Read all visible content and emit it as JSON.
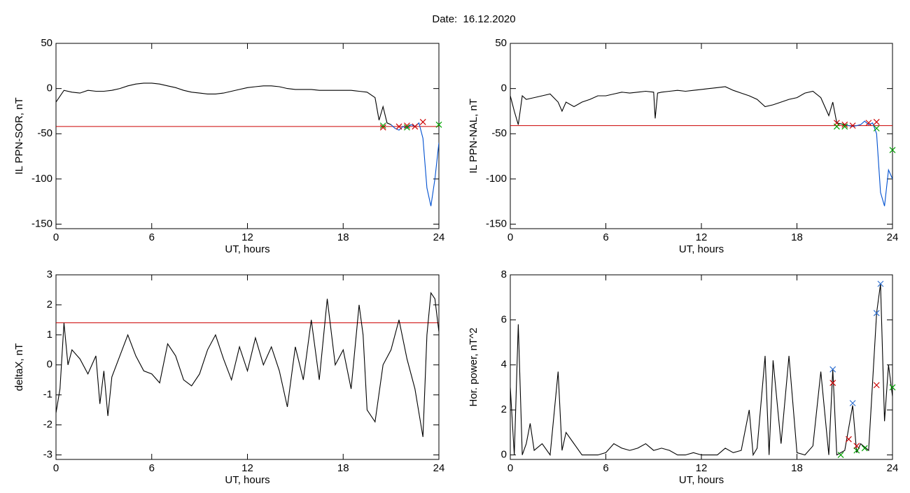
{
  "title": "Date:  16.12.2020",
  "chart_data": [
    {
      "type": "line",
      "xlabel": "UT, hours",
      "ylabel": "IL PPN-SOR, nT",
      "xlim": [
        0,
        24
      ],
      "xticks": [
        0,
        6,
        12,
        18,
        24
      ],
      "ylim": [
        -155,
        50
      ],
      "yticks": [
        -150,
        -100,
        -50,
        0,
        50
      ],
      "threshold": {
        "value": -42,
        "color": "#cc0000"
      },
      "series": [
        {
          "type": "line",
          "color": "#000000",
          "x": [
            0,
            0.5,
            1,
            1.5,
            2,
            2.5,
            3,
            3.5,
            4,
            4.5,
            5,
            5.5,
            6,
            6.5,
            7,
            7.5,
            8,
            8.5,
            9,
            9.5,
            10,
            10.5,
            11,
            11.5,
            12,
            12.5,
            13,
            13.5,
            14,
            14.5,
            15,
            15.5,
            16,
            16.5,
            17,
            17.5,
            18,
            18.5,
            19,
            19.5,
            20,
            20.25,
            20.5,
            20.75,
            21
          ],
          "values": [
            -15,
            -2,
            -4,
            -5,
            -2,
            -3,
            -3,
            -2,
            0,
            3,
            5,
            6,
            6,
            5,
            3,
            1,
            -2,
            -4,
            -5,
            -6,
            -6,
            -5,
            -3,
            -1,
            1,
            2,
            3,
            3,
            2,
            0,
            -1,
            -1,
            -1,
            -2,
            -2,
            -2,
            -2,
            -2,
            -3,
            -4,
            -10,
            -35,
            -20,
            -38,
            -40
          ]
        },
        {
          "type": "line",
          "color": "#0050d0",
          "x": [
            21,
            21.25,
            21.5,
            21.75,
            22,
            22.25,
            22.5,
            22.75,
            23,
            23.25,
            23.5,
            23.75,
            24
          ],
          "values": [
            -40,
            -44,
            -46,
            -42,
            -44,
            -40,
            -42,
            -38,
            -55,
            -110,
            -130,
            -100,
            -60
          ]
        },
        {
          "type": "scatter",
          "color": "#cc0000",
          "x": [
            20.5,
            21.5,
            22,
            22.5,
            23
          ],
          "values": [
            -43,
            -42,
            -41,
            -42,
            -37
          ]
        },
        {
          "type": "scatter",
          "color": "#00a000",
          "x": [
            20.5,
            22,
            24
          ],
          "values": [
            -41,
            -43,
            -40
          ]
        }
      ]
    },
    {
      "type": "line",
      "xlabel": "UT, hours",
      "ylabel": "IL PPN-NAL, nT",
      "xlim": [
        0,
        24
      ],
      "xticks": [
        0,
        6,
        12,
        18,
        24
      ],
      "ylim": [
        -155,
        50
      ],
      "yticks": [
        -150,
        -100,
        -50,
        0,
        50
      ],
      "threshold": {
        "value": -41,
        "color": "#cc0000"
      },
      "series": [
        {
          "type": "line",
          "color": "#000000",
          "x": [
            0,
            0.25,
            0.5,
            0.75,
            1,
            1.5,
            2,
            2.5,
            3,
            3.25,
            3.5,
            4,
            4.5,
            5,
            5.5,
            6,
            6.5,
            7,
            7.5,
            8,
            8.5,
            9,
            9.1,
            9.25,
            9.5,
            10,
            10.5,
            11,
            11.5,
            12,
            12.5,
            13,
            13.5,
            14,
            14.5,
            15,
            15.5,
            16,
            16.5,
            17,
            17.5,
            18,
            18.5,
            19,
            19.5,
            20,
            20.25,
            20.5,
            21
          ],
          "values": [
            -8,
            -25,
            -40,
            -8,
            -12,
            -10,
            -8,
            -6,
            -15,
            -25,
            -15,
            -20,
            -15,
            -12,
            -8,
            -8,
            -6,
            -4,
            -5,
            -4,
            -3,
            -4,
            -33,
            -5,
            -4,
            -3,
            -2,
            -3,
            -2,
            -1,
            0,
            1,
            2,
            -2,
            -5,
            -8,
            -12,
            -20,
            -18,
            -15,
            -12,
            -10,
            -5,
            -3,
            -10,
            -30,
            -15,
            -38,
            -40
          ]
        },
        {
          "type": "line",
          "color": "#0050d0",
          "x": [
            21,
            21.5,
            22,
            22.25,
            22.5,
            22.75,
            23,
            23.25,
            23.5,
            23.75,
            24
          ],
          "values": [
            -40,
            -42,
            -40,
            -36,
            -40,
            -38,
            -50,
            -115,
            -130,
            -90,
            -100
          ]
        },
        {
          "type": "scatter",
          "color": "#cc0000",
          "x": [
            20.5,
            21,
            21.5,
            22.5,
            23
          ],
          "values": [
            -38,
            -40,
            -41,
            -38,
            -37
          ]
        },
        {
          "type": "scatter",
          "color": "#00a000",
          "x": [
            20.5,
            21,
            23,
            24
          ],
          "values": [
            -42,
            -42,
            -44,
            -68
          ]
        }
      ]
    },
    {
      "type": "line",
      "xlabel": "UT, hours",
      "ylabel": "deltaX, nT",
      "xlim": [
        0,
        24
      ],
      "xticks": [
        0,
        6,
        12,
        18,
        24
      ],
      "ylim": [
        -3.15,
        3
      ],
      "yticks": [
        -3,
        -2,
        -1,
        0,
        1,
        2,
        3
      ],
      "threshold": {
        "value": 1.4,
        "color": "#cc0000"
      },
      "series": [
        {
          "type": "line",
          "color": "#000000",
          "x": [
            0,
            0.25,
            0.5,
            0.75,
            1,
            1.5,
            2,
            2.5,
            2.75,
            3,
            3.25,
            3.5,
            4,
            4.5,
            5,
            5.5,
            6,
            6.5,
            7,
            7.5,
            8,
            8.5,
            9,
            9.5,
            10,
            10.5,
            11,
            11.5,
            12,
            12.5,
            13,
            13.5,
            14,
            14.5,
            15,
            15.5,
            16,
            16.5,
            17,
            17.5,
            18,
            18.5,
            19,
            19.25,
            19.5,
            20,
            20.5,
            21,
            21.5,
            22,
            22.5,
            23,
            23.25,
            23.5,
            23.75,
            24
          ],
          "values": [
            -1.6,
            -0.8,
            1.4,
            0,
            0.5,
            0.2,
            -0.3,
            0.3,
            -1.3,
            -0.2,
            -1.7,
            -0.4,
            0.3,
            1,
            0.3,
            -0.2,
            -0.3,
            -0.6,
            0.7,
            0.3,
            -0.5,
            -0.7,
            -0.3,
            0.5,
            1,
            0.2,
            -0.5,
            0.6,
            -0.2,
            0.9,
            0,
            0.6,
            -0.2,
            -1.4,
            0.6,
            -0.5,
            1.5,
            -0.5,
            2.2,
            0,
            0.5,
            -0.8,
            2,
            1,
            -1.5,
            -1.9,
            0,
            0.5,
            1.5,
            0.2,
            -0.8,
            -2.4,
            1,
            2.4,
            2.2,
            1.1
          ]
        }
      ]
    },
    {
      "type": "line",
      "xlabel": "UT, hours",
      "ylabel": "Hor. power, nT^2",
      "xlim": [
        0,
        24
      ],
      "xticks": [
        0,
        6,
        12,
        18,
        24
      ],
      "ylim": [
        -0.2,
        8
      ],
      "yticks": [
        0,
        2,
        4,
        6,
        8
      ],
      "series": [
        {
          "type": "line",
          "color": "#000000",
          "x": [
            0,
            0.25,
            0.5,
            0.75,
            1,
            1.25,
            1.5,
            2,
            2.5,
            3,
            3.25,
            3.5,
            4,
            4.5,
            5,
            5.5,
            6,
            6.5,
            7,
            7.5,
            8,
            8.5,
            9,
            9.5,
            10,
            10.5,
            11,
            11.5,
            12,
            12.5,
            13,
            13.5,
            14,
            14.5,
            15,
            15.25,
            15.5,
            16,
            16.25,
            16.5,
            17,
            17.5,
            18,
            18.5,
            19,
            19.5,
            20,
            20.25,
            20.5,
            21,
            21.5,
            21.75,
            22,
            22.5,
            23,
            23.25,
            23.5,
            23.75,
            24
          ],
          "values": [
            3,
            0,
            5.8,
            0,
            0.5,
            1.4,
            0.2,
            0.5,
            0,
            3.7,
            0.2,
            1,
            0.5,
            0,
            0,
            0,
            0.1,
            0.5,
            0.3,
            0.2,
            0.3,
            0.5,
            0.2,
            0.3,
            0.2,
            0,
            0,
            0.1,
            0,
            0,
            0,
            0.3,
            0.1,
            0.2,
            2,
            0,
            0.3,
            4.4,
            0,
            4.2,
            0.5,
            4.4,
            0.1,
            0,
            0.4,
            3.7,
            0,
            3.8,
            0,
            0.2,
            2.2,
            0.1,
            0.5,
            0.2,
            6.3,
            7.6,
            1.5,
            4,
            2.6
          ]
        },
        {
          "type": "scatter",
          "color": "#3070d0",
          "x": [
            20.25,
            21.5,
            23,
            23.25
          ],
          "values": [
            3.8,
            2.3,
            6.3,
            7.6
          ]
        },
        {
          "type": "scatter",
          "color": "#cc0000",
          "x": [
            20.25,
            21.25,
            21.75,
            23
          ],
          "values": [
            3.2,
            0.7,
            0.4,
            3.1
          ]
        },
        {
          "type": "scatter",
          "color": "#00a000",
          "x": [
            20.75,
            21.75,
            22.25,
            24
          ],
          "values": [
            0,
            0.2,
            0.3,
            3.0
          ]
        }
      ]
    }
  ]
}
